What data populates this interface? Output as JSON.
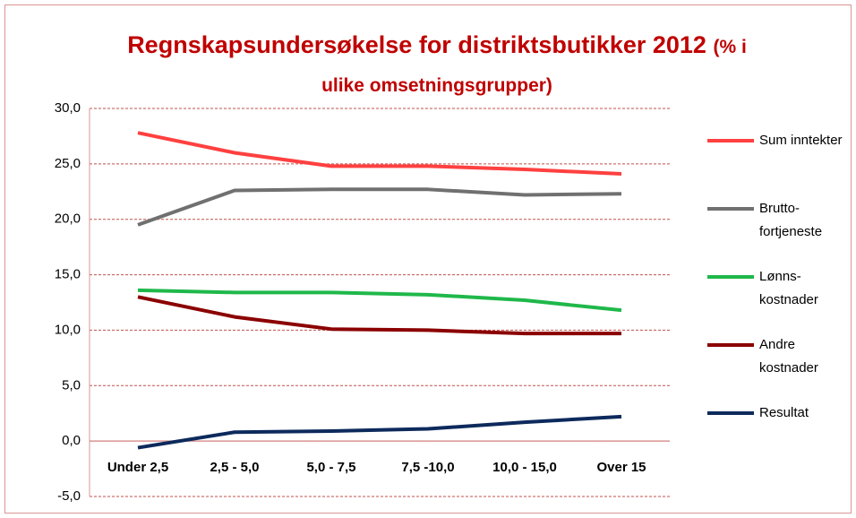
{
  "chart_data": {
    "type": "line",
    "title": "Regnskapsundersøkelse for distriktsbutikker 2012",
    "subtitle": "(% i ulike omsetningsgrupper)",
    "categories": [
      "Under 2,5",
      "2,5 - 5,0",
      "5,0 - 7,5",
      "7,5 -10,0",
      "10,0 - 15,0",
      "Over 15"
    ],
    "series": [
      {
        "name": "Sum inntekter",
        "color": "#ff4040",
        "values": [
          27.8,
          26.0,
          24.8,
          24.8,
          24.5,
          24.1
        ]
      },
      {
        "name": "Brutto-fortjeneste",
        "color": "#707070",
        "values": [
          19.5,
          22.6,
          22.7,
          22.7,
          22.2,
          22.3
        ]
      },
      {
        "name": "Lønns-kostnader",
        "color": "#1fb84a",
        "values": [
          13.6,
          13.4,
          13.4,
          13.2,
          12.7,
          11.8
        ]
      },
      {
        "name": "Andre kostnader",
        "color": "#8b0000",
        "values": [
          13.0,
          11.2,
          10.1,
          10.0,
          9.7,
          9.7
        ]
      },
      {
        "name": "Resultat",
        "color": "#0d2a5c",
        "values": [
          -0.6,
          0.8,
          0.9,
          1.1,
          1.7,
          2.2
        ]
      }
    ],
    "ylim": [
      -5,
      30
    ],
    "yticks": [
      {
        "value": -5,
        "label": "-5,0"
      },
      {
        "value": 0,
        "label": "0,0"
      },
      {
        "value": 5,
        "label": "5,0"
      },
      {
        "value": 10,
        "label": "10,0"
      },
      {
        "value": 15,
        "label": "15,0"
      },
      {
        "value": 20,
        "label": "20,0"
      },
      {
        "value": 25,
        "label": "25,0"
      },
      {
        "value": 30,
        "label": "30,0"
      }
    ],
    "grid": true,
    "legend": "right"
  }
}
